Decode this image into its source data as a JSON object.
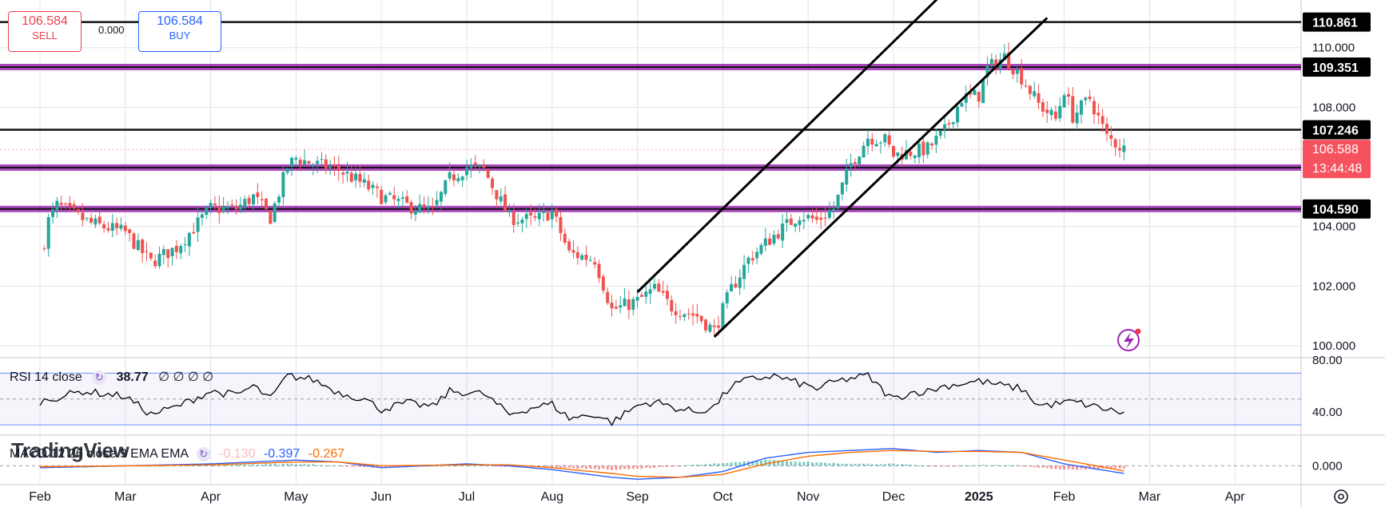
{
  "trade": {
    "sell_price": "106.584",
    "sell_label": "SELL",
    "buy_price": "106.584",
    "buy_label": "BUY",
    "spread": "0.000"
  },
  "logo_text": "TradingView",
  "rsi_legend": {
    "name": "RSI 14 close",
    "value": "38.77",
    "extra": "∅ ∅ ∅ ∅"
  },
  "macd_legend": {
    "name": "MACD 12 26 close 9 EMA EMA",
    "hist": "-0.130",
    "macd": "-0.397",
    "signal": "-0.267"
  },
  "colors": {
    "up": "#26a69a",
    "down": "#ef5350",
    "purple": "#9c27b0",
    "macd": "#2962ff",
    "signal": "#ff6d00",
    "current_price_bg": "#f7525f"
  },
  "chart_data": {
    "type": "candlestick",
    "x_labels": [
      "Feb",
      "Mar",
      "Apr",
      "May",
      "Jun",
      "Jul",
      "Aug",
      "Sep",
      "Oct",
      "Nov",
      "Dec",
      "2025",
      "Feb",
      "Mar",
      "Apr"
    ],
    "y_ticks": [
      "110.000",
      "108.000",
      "104.000",
      "102.000",
      "100.000"
    ],
    "ylim": [
      99.6,
      111.6
    ],
    "anchors_close": [
      [
        0,
        103.2
      ],
      [
        0.05,
        103.5
      ],
      [
        0.1,
        104.2
      ],
      [
        0.2,
        104.7
      ],
      [
        0.4,
        104.4
      ],
      [
        0.6,
        104.1
      ],
      [
        1.0,
        103.8
      ],
      [
        1.3,
        102.8
      ],
      [
        1.6,
        103.3
      ],
      [
        2.0,
        104.6
      ],
      [
        2.3,
        104.6
      ],
      [
        2.5,
        105.0
      ],
      [
        2.7,
        104.3
      ],
      [
        2.9,
        106.0
      ],
      [
        3.0,
        106.3
      ],
      [
        3.2,
        106.1
      ],
      [
        3.5,
        105.9
      ],
      [
        3.8,
        105.4
      ],
      [
        4.0,
        105.0
      ],
      [
        4.3,
        104.7
      ],
      [
        4.6,
        104.5
      ],
      [
        4.8,
        105.6
      ],
      [
        5.0,
        106.0
      ],
      [
        5.2,
        105.9
      ],
      [
        5.5,
        104.3
      ],
      [
        5.8,
        104.2
      ],
      [
        6.0,
        104.5
      ],
      [
        6.2,
        103.1
      ],
      [
        6.5,
        102.9
      ],
      [
        6.7,
        101.2
      ],
      [
        7.0,
        101.5
      ],
      [
        7.2,
        101.9
      ],
      [
        7.4,
        101.3
      ],
      [
        7.7,
        101.0
      ],
      [
        7.9,
        100.5
      ],
      [
        8.1,
        101.9
      ],
      [
        8.3,
        102.9
      ],
      [
        8.6,
        103.7
      ],
      [
        8.9,
        104.4
      ],
      [
        9.1,
        104.2
      ],
      [
        9.3,
        104.6
      ],
      [
        9.5,
        106.1
      ],
      [
        9.7,
        107.0
      ],
      [
        9.9,
        106.9
      ],
      [
        10.0,
        106.4
      ],
      [
        10.2,
        106.5
      ],
      [
        10.4,
        106.6
      ],
      [
        10.6,
        107.2
      ],
      [
        10.8,
        108.3
      ],
      [
        11.0,
        108.4
      ],
      [
        11.1,
        109.3
      ],
      [
        11.3,
        109.7
      ],
      [
        11.5,
        109.0
      ],
      [
        11.7,
        108.1
      ],
      [
        11.9,
        107.6
      ],
      [
        12.0,
        108.6
      ],
      [
        12.1,
        107.7
      ],
      [
        12.3,
        108.3
      ],
      [
        12.5,
        107.0
      ],
      [
        12.7,
        106.6
      ]
    ],
    "current_price": "106.588",
    "countdown": "13:44:48",
    "horizontal_levels": [
      {
        "value": 110.861,
        "label": "110.861",
        "style": "black"
      },
      {
        "value": 109.351,
        "label": "109.351",
        "style": "purple"
      },
      {
        "value": 107.246,
        "label": "107.246",
        "style": "black"
      },
      {
        "value": 105.979,
        "label": "105.979",
        "style": "purple"
      },
      {
        "value": 104.59,
        "label": "104.590",
        "style": "purple"
      }
    ],
    "trend_lines": [
      {
        "from": [
          7.0,
          101.8
        ],
        "to": [
          11.0,
          113.0
        ]
      },
      {
        "from": [
          7.9,
          100.3
        ],
        "to": [
          11.8,
          111.0
        ]
      }
    ],
    "rsi": {
      "ylim": [
        22,
        82
      ],
      "ticks": [
        "80.00",
        "40.00"
      ],
      "bands": [
        70,
        30
      ],
      "anchors": [
        [
          0,
          48
        ],
        [
          0.5,
          56
        ],
        [
          1.0,
          52
        ],
        [
          1.3,
          38
        ],
        [
          1.6,
          44
        ],
        [
          2.0,
          56
        ],
        [
          2.3,
          53
        ],
        [
          2.5,
          60
        ],
        [
          2.7,
          50
        ],
        [
          2.9,
          68
        ],
        [
          3.2,
          65
        ],
        [
          3.5,
          55
        ],
        [
          3.8,
          50
        ],
        [
          4.0,
          42
        ],
        [
          4.3,
          47
        ],
        [
          4.6,
          44
        ],
        [
          4.8,
          56
        ],
        [
          5.0,
          55
        ],
        [
          5.2,
          54
        ],
        [
          5.5,
          38
        ],
        [
          5.8,
          44
        ],
        [
          6.0,
          46
        ],
        [
          6.2,
          35
        ],
        [
          6.5,
          38
        ],
        [
          6.7,
          32
        ],
        [
          7.0,
          45
        ],
        [
          7.2,
          48
        ],
        [
          7.5,
          42
        ],
        [
          7.7,
          40
        ],
        [
          7.9,
          44
        ],
        [
          8.1,
          60
        ],
        [
          8.3,
          65
        ],
        [
          8.6,
          68
        ],
        [
          8.9,
          62
        ],
        [
          9.1,
          58
        ],
        [
          9.3,
          63
        ],
        [
          9.5,
          66
        ],
        [
          9.7,
          68
        ],
        [
          9.9,
          55
        ],
        [
          10.0,
          50
        ],
        [
          10.2,
          55
        ],
        [
          10.4,
          56
        ],
        [
          10.6,
          60
        ],
        [
          10.8,
          62
        ],
        [
          11.0,
          64
        ],
        [
          11.3,
          60
        ],
        [
          11.5,
          58
        ],
        [
          11.7,
          45
        ],
        [
          11.9,
          46
        ],
        [
          12.1,
          48
        ],
        [
          12.3,
          45
        ],
        [
          12.5,
          42
        ],
        [
          12.7,
          39
        ]
      ]
    },
    "macd": {
      "ylim": [
        -0.9,
        1.6
      ],
      "ticks": [
        "0.000"
      ],
      "macd_anchors": [
        [
          0,
          -0.1
        ],
        [
          1.0,
          0.0
        ],
        [
          2.0,
          0.1
        ],
        [
          3.0,
          0.3
        ],
        [
          3.5,
          0.2
        ],
        [
          4.0,
          -0.1
        ],
        [
          5.0,
          0.1
        ],
        [
          5.5,
          0.0
        ],
        [
          6.0,
          -0.2
        ],
        [
          6.7,
          -0.6
        ],
        [
          7.0,
          -0.7
        ],
        [
          7.5,
          -0.6
        ],
        [
          8.0,
          -0.3
        ],
        [
          8.5,
          0.4
        ],
        [
          9.0,
          0.7
        ],
        [
          9.5,
          0.8
        ],
        [
          10.0,
          0.9
        ],
        [
          10.5,
          0.7
        ],
        [
          11.0,
          0.8
        ],
        [
          11.5,
          0.7
        ],
        [
          12.0,
          0.1
        ],
        [
          12.7,
          -0.4
        ]
      ],
      "signal_anchors": [
        [
          0,
          -0.05
        ],
        [
          1.0,
          0.0
        ],
        [
          2.0,
          0.05
        ],
        [
          3.0,
          0.2
        ],
        [
          3.5,
          0.2
        ],
        [
          4.0,
          0.0
        ],
        [
          5.0,
          0.05
        ],
        [
          5.5,
          0.05
        ],
        [
          6.0,
          -0.1
        ],
        [
          6.7,
          -0.4
        ],
        [
          7.0,
          -0.55
        ],
        [
          7.5,
          -0.6
        ],
        [
          8.0,
          -0.45
        ],
        [
          8.5,
          0.1
        ],
        [
          9.0,
          0.5
        ],
        [
          9.5,
          0.7
        ],
        [
          10.0,
          0.8
        ],
        [
          10.5,
          0.75
        ],
        [
          11.0,
          0.75
        ],
        [
          11.5,
          0.7
        ],
        [
          12.0,
          0.3
        ],
        [
          12.7,
          -0.27
        ]
      ]
    }
  }
}
